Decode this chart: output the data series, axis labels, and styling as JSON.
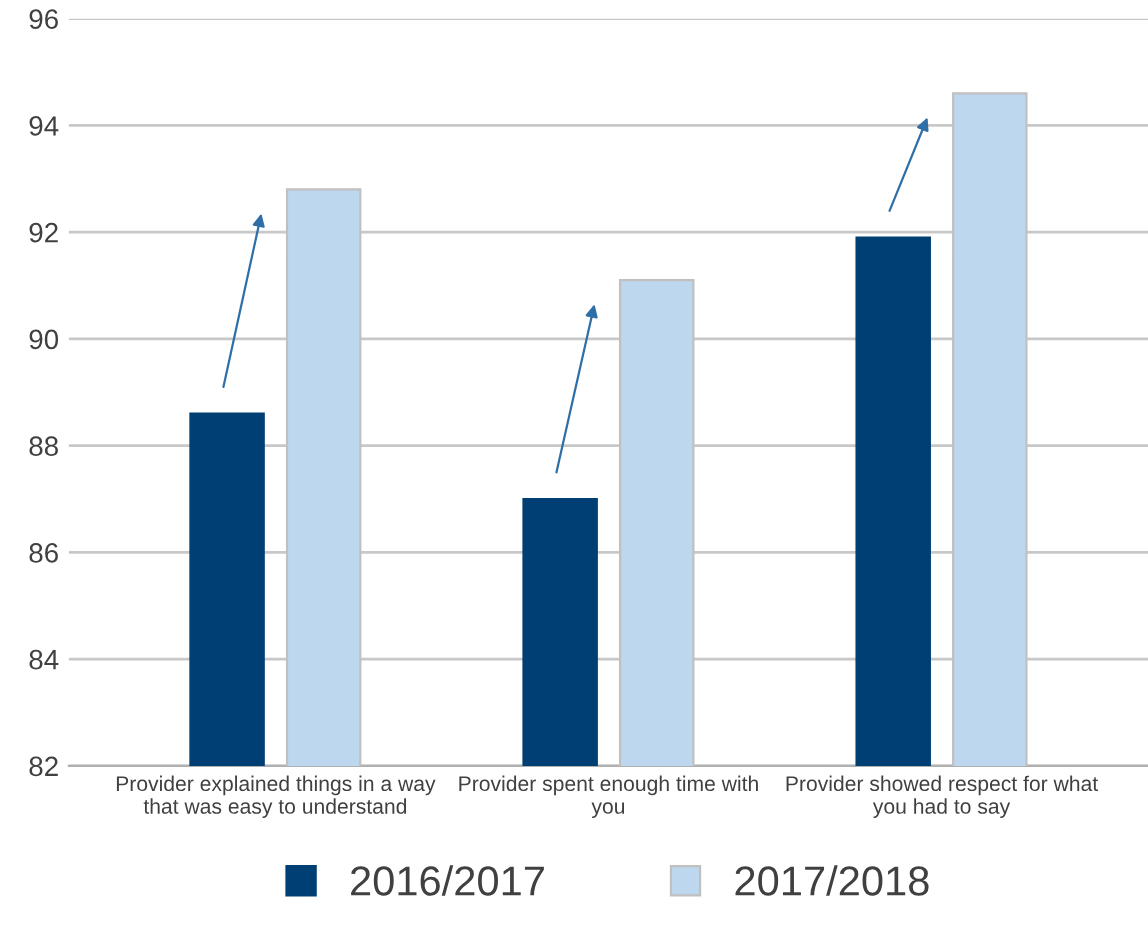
{
  "chart_data": {
    "type": "bar",
    "categories": [
      "Provider explained things in a way\nthat was easy to understand",
      "Provider spent enough time with\nyou",
      "Provider showed respect for what\nyou had to say"
    ],
    "series": [
      {
        "name": "2016/2017",
        "color": "#003f73",
        "values": [
          88.6,
          87.0,
          91.9
        ]
      },
      {
        "name": "2017/2018",
        "color": "#bdd7ee",
        "values": [
          92.8,
          91.1,
          94.6
        ]
      }
    ],
    "ylim": [
      82,
      96
    ],
    "yticks": [
      82,
      84,
      86,
      88,
      90,
      92,
      94,
      96
    ],
    "grid": "y",
    "legend": "bottom"
  }
}
